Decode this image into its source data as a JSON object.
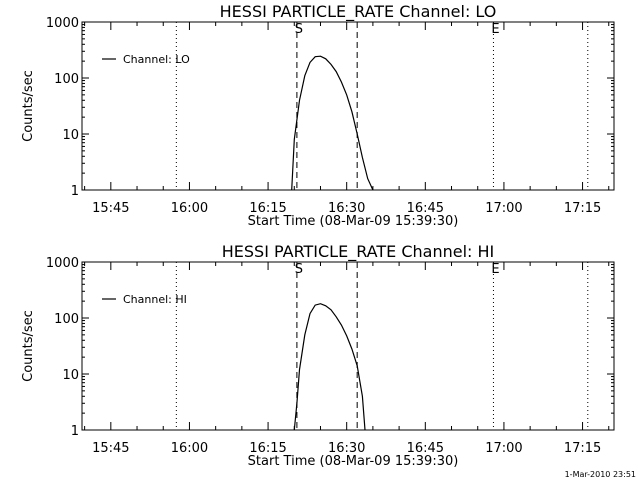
{
  "footer_timestamp": "1-Mar-2010 23:51",
  "chart_data": [
    {
      "type": "line",
      "title": "HESSI PARTICLE_RATE Channel: LO",
      "xlabel": "Start Time (08-Mar-09 15:39:30)",
      "ylabel": "Counts/sec",
      "yscale": "log",
      "ylim": [
        1,
        1000
      ],
      "xlim": [
        "15:39:30",
        "17:21:00"
      ],
      "xticks": [
        "15:45",
        "16:00",
        "16:15",
        "16:30",
        "16:45",
        "17:00",
        "17:15"
      ],
      "yticks": [
        "1",
        "10",
        "100",
        "1000"
      ],
      "legend": {
        "position": "top-left",
        "entries": [
          "Channel: LO"
        ]
      },
      "series": [
        {
          "name": "Channel: LO",
          "x": [
            "16:19:30",
            "16:20:00",
            "16:21:00",
            "16:22:00",
            "16:23:00",
            "16:24:00",
            "16:25:00",
            "16:26:00",
            "16:27:00",
            "16:28:00",
            "16:29:00",
            "16:30:00",
            "16:31:00",
            "16:32:00",
            "16:33:00",
            "16:34:00",
            "16:35:00"
          ],
          "y": [
            1,
            8,
            40,
            110,
            190,
            240,
            245,
            220,
            175,
            130,
            85,
            50,
            25,
            10,
            3.8,
            1.6,
            1
          ]
        }
      ],
      "vertical_markers": [
        {
          "time": "15:57:30",
          "style": "dotted",
          "label": ""
        },
        {
          "time": "16:20:30",
          "style": "dashed",
          "label": "S"
        },
        {
          "time": "16:32:00",
          "style": "dashed",
          "label": ""
        },
        {
          "time": "16:58:00",
          "style": "dotted",
          "label": "E"
        },
        {
          "time": "17:16:00",
          "style": "dotted",
          "label": ""
        }
      ]
    },
    {
      "type": "line",
      "title": "HESSI PARTICLE_RATE Channel: HI",
      "xlabel": "Start Time (08-Mar-09 15:39:30)",
      "ylabel": "Counts/sec",
      "yscale": "log",
      "ylim": [
        1,
        1000
      ],
      "xlim": [
        "15:39:30",
        "17:21:00"
      ],
      "xticks": [
        "15:45",
        "16:00",
        "16:15",
        "16:30",
        "16:45",
        "17:00",
        "17:15"
      ],
      "yticks": [
        "1",
        "10",
        "100",
        "1000"
      ],
      "legend": {
        "position": "top-left",
        "entries": [
          "Channel: HI"
        ]
      },
      "series": [
        {
          "name": "Channel: HI",
          "x": [
            "16:20:00",
            "16:20:30",
            "16:21:00",
            "16:22:00",
            "16:23:00",
            "16:24:00",
            "16:25:00",
            "16:26:00",
            "16:27:00",
            "16:28:00",
            "16:29:00",
            "16:30:00",
            "16:31:00",
            "16:32:00",
            "16:33:00",
            "16:33:30"
          ],
          "y": [
            1,
            3,
            12,
            50,
            120,
            170,
            180,
            165,
            140,
            105,
            75,
            48,
            28,
            14,
            4,
            1
          ]
        }
      ],
      "vertical_markers": [
        {
          "time": "15:57:30",
          "style": "dotted",
          "label": ""
        },
        {
          "time": "16:20:30",
          "style": "dashed",
          "label": "S"
        },
        {
          "time": "16:32:00",
          "style": "dashed",
          "label": ""
        },
        {
          "time": "16:58:00",
          "style": "dotted",
          "label": "E"
        },
        {
          "time": "17:16:00",
          "style": "dotted",
          "label": ""
        }
      ]
    }
  ]
}
